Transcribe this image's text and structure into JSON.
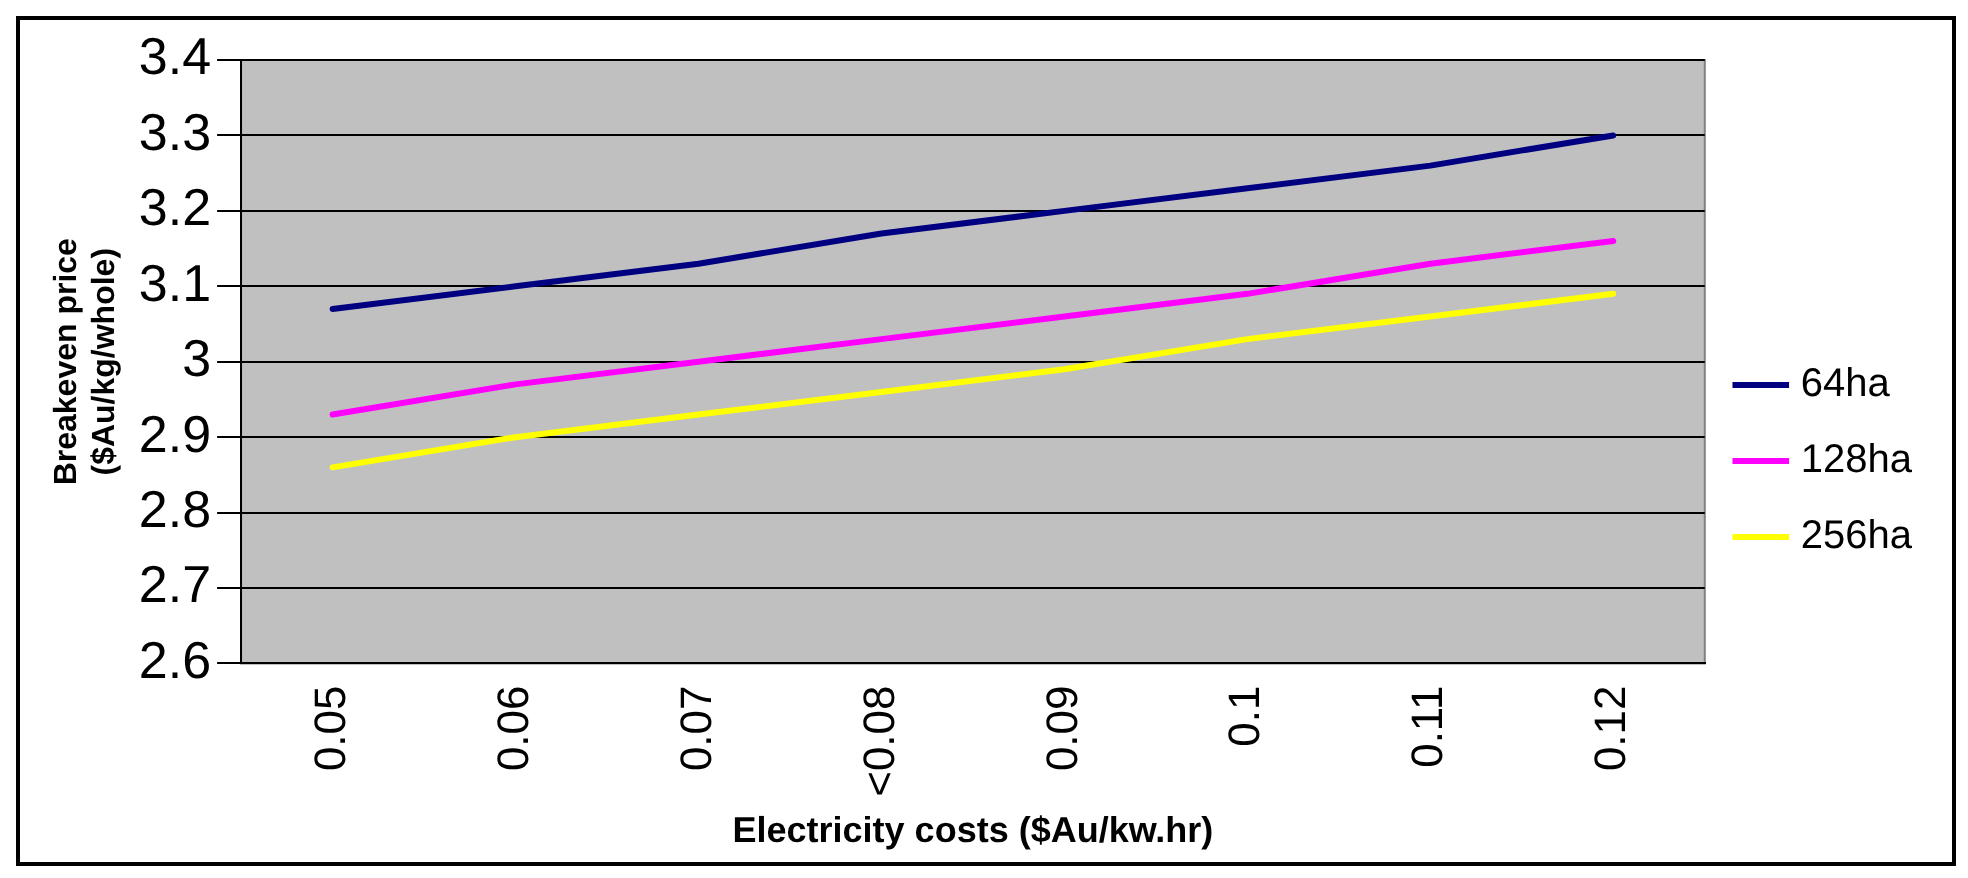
{
  "chart_data": {
    "type": "line",
    "xlabel": "Electricity costs ($Au/kw.hr)",
    "ylabel": "Breakeven price\n($Au/kg/whole)",
    "categories": [
      "0.05",
      "0.06",
      "0.07",
      "<0.08",
      "0.09",
      "0.1",
      "0.11",
      "0.12"
    ],
    "series": [
      {
        "name": "64ha",
        "color": "#000080",
        "values": [
          3.07,
          3.1,
          3.13,
          3.17,
          3.2,
          3.23,
          3.26,
          3.3
        ]
      },
      {
        "name": "128ha",
        "color": "#ff00ff",
        "values": [
          2.93,
          2.97,
          3.0,
          3.03,
          3.06,
          3.09,
          3.13,
          3.16
        ]
      },
      {
        "name": "256ha",
        "color": "#ffff00",
        "values": [
          2.86,
          2.9,
          2.93,
          2.96,
          2.99,
          3.03,
          3.06,
          3.09
        ]
      }
    ],
    "ylim": [
      2.6,
      3.4
    ],
    "yticks": [
      2.6,
      2.7,
      2.8,
      2.9,
      3,
      3.1,
      3.2,
      3.3,
      3.4
    ],
    "grid": "y",
    "legend": "right",
    "marker": "none",
    "line_style": "solid"
  }
}
